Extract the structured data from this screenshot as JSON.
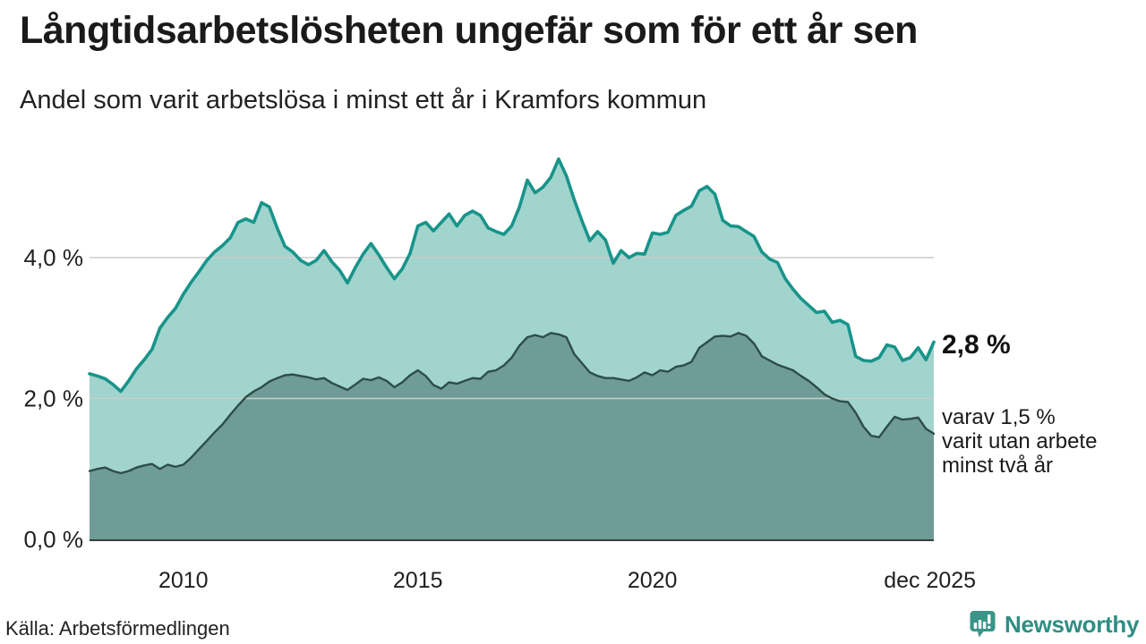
{
  "chart_data": {
    "type": "area",
    "title": "Långtidsarbetslösheten ungefär som för ett år sen",
    "subtitle": "Andel som varit arbetslösa i minst ett år i Kramfors kommun",
    "x_tick_labels": [
      "2010",
      "2015",
      "2020",
      "dec 2025"
    ],
    "x_tick_months": [
      24,
      84,
      144,
      215
    ],
    "y_tick_labels": [
      "0,0 %",
      "2,0 %",
      "4,0 %"
    ],
    "y_tick_values": [
      0,
      2,
      4
    ],
    "months_span": 216,
    "sample_step_months": 2,
    "ylim": [
      0,
      5.44
    ],
    "grid": true,
    "legend_position": "none",
    "series": [
      {
        "name": "arbetslösa i minst ett år",
        "line_color": "#18948a",
        "fill_color": "#a1d4cd",
        "values": [
          2.35,
          2.32,
          2.28,
          2.2,
          2.1,
          2.25,
          2.42,
          2.55,
          2.7,
          3.0,
          3.15,
          3.28,
          3.48,
          3.65,
          3.8,
          3.96,
          4.08,
          4.17,
          4.28,
          4.5,
          4.55,
          4.5,
          4.78,
          4.72,
          4.42,
          4.16,
          4.08,
          3.96,
          3.9,
          3.96,
          4.1,
          3.94,
          3.82,
          3.64,
          3.86,
          4.05,
          4.2,
          4.04,
          3.86,
          3.7,
          3.84,
          4.06,
          4.45,
          4.5,
          4.38,
          4.5,
          4.62,
          4.45,
          4.6,
          4.66,
          4.6,
          4.42,
          4.37,
          4.33,
          4.45,
          4.72,
          5.1,
          4.92,
          5.0,
          5.14,
          5.4,
          5.16,
          4.82,
          4.52,
          4.24,
          4.37,
          4.25,
          3.92,
          4.1,
          4.0,
          4.06,
          4.05,
          4.35,
          4.33,
          4.36,
          4.6,
          4.67,
          4.73,
          4.95,
          5.01,
          4.9,
          4.53,
          4.45,
          4.44,
          4.37,
          4.3,
          4.08,
          3.98,
          3.93,
          3.7,
          3.55,
          3.42,
          3.32,
          3.22,
          3.24,
          3.08,
          3.11,
          3.05,
          2.6,
          2.54,
          2.53,
          2.58,
          2.76,
          2.73,
          2.54,
          2.58,
          2.72,
          2.55,
          2.8
        ]
      },
      {
        "name": "utan arbete minst två år",
        "line_color": "#2e4d48",
        "fill_color": "#6f9c97",
        "values": [
          0.97,
          1.0,
          1.02,
          0.97,
          0.94,
          0.97,
          1.02,
          1.05,
          1.07,
          1.0,
          1.06,
          1.03,
          1.06,
          1.16,
          1.28,
          1.4,
          1.52,
          1.63,
          1.77,
          1.9,
          2.02,
          2.1,
          2.16,
          2.24,
          2.29,
          2.33,
          2.34,
          2.32,
          2.3,
          2.27,
          2.29,
          2.22,
          2.17,
          2.12,
          2.2,
          2.28,
          2.26,
          2.3,
          2.25,
          2.16,
          2.23,
          2.33,
          2.4,
          2.32,
          2.19,
          2.14,
          2.23,
          2.21,
          2.25,
          2.29,
          2.28,
          2.38,
          2.4,
          2.47,
          2.58,
          2.75,
          2.87,
          2.9,
          2.87,
          2.93,
          2.91,
          2.87,
          2.63,
          2.5,
          2.37,
          2.32,
          2.29,
          2.29,
          2.27,
          2.25,
          2.3,
          2.37,
          2.33,
          2.4,
          2.38,
          2.45,
          2.47,
          2.52,
          2.72,
          2.8,
          2.88,
          2.89,
          2.88,
          2.93,
          2.89,
          2.78,
          2.6,
          2.54,
          2.48,
          2.44,
          2.4,
          2.32,
          2.25,
          2.16,
          2.06,
          2.0,
          1.96,
          1.95,
          1.8,
          1.6,
          1.47,
          1.45,
          1.6,
          1.74,
          1.7,
          1.71,
          1.73,
          1.57,
          1.5
        ]
      }
    ],
    "annotations": {
      "end_value_label": "2,8 %",
      "end_note_lines": [
        "varav 1,5 %",
        "varit utan arbete",
        "minst två år"
      ]
    },
    "source": "Källa: Arbetsförmedlingen"
  },
  "footer": {
    "brand": "Newsworthy",
    "brand_color": "#2f8e83",
    "icon_color": "#3a9488"
  },
  "colors": {
    "grid": "#cccccc",
    "axis": "#3c3c3c",
    "text": "#1f1f1f"
  }
}
